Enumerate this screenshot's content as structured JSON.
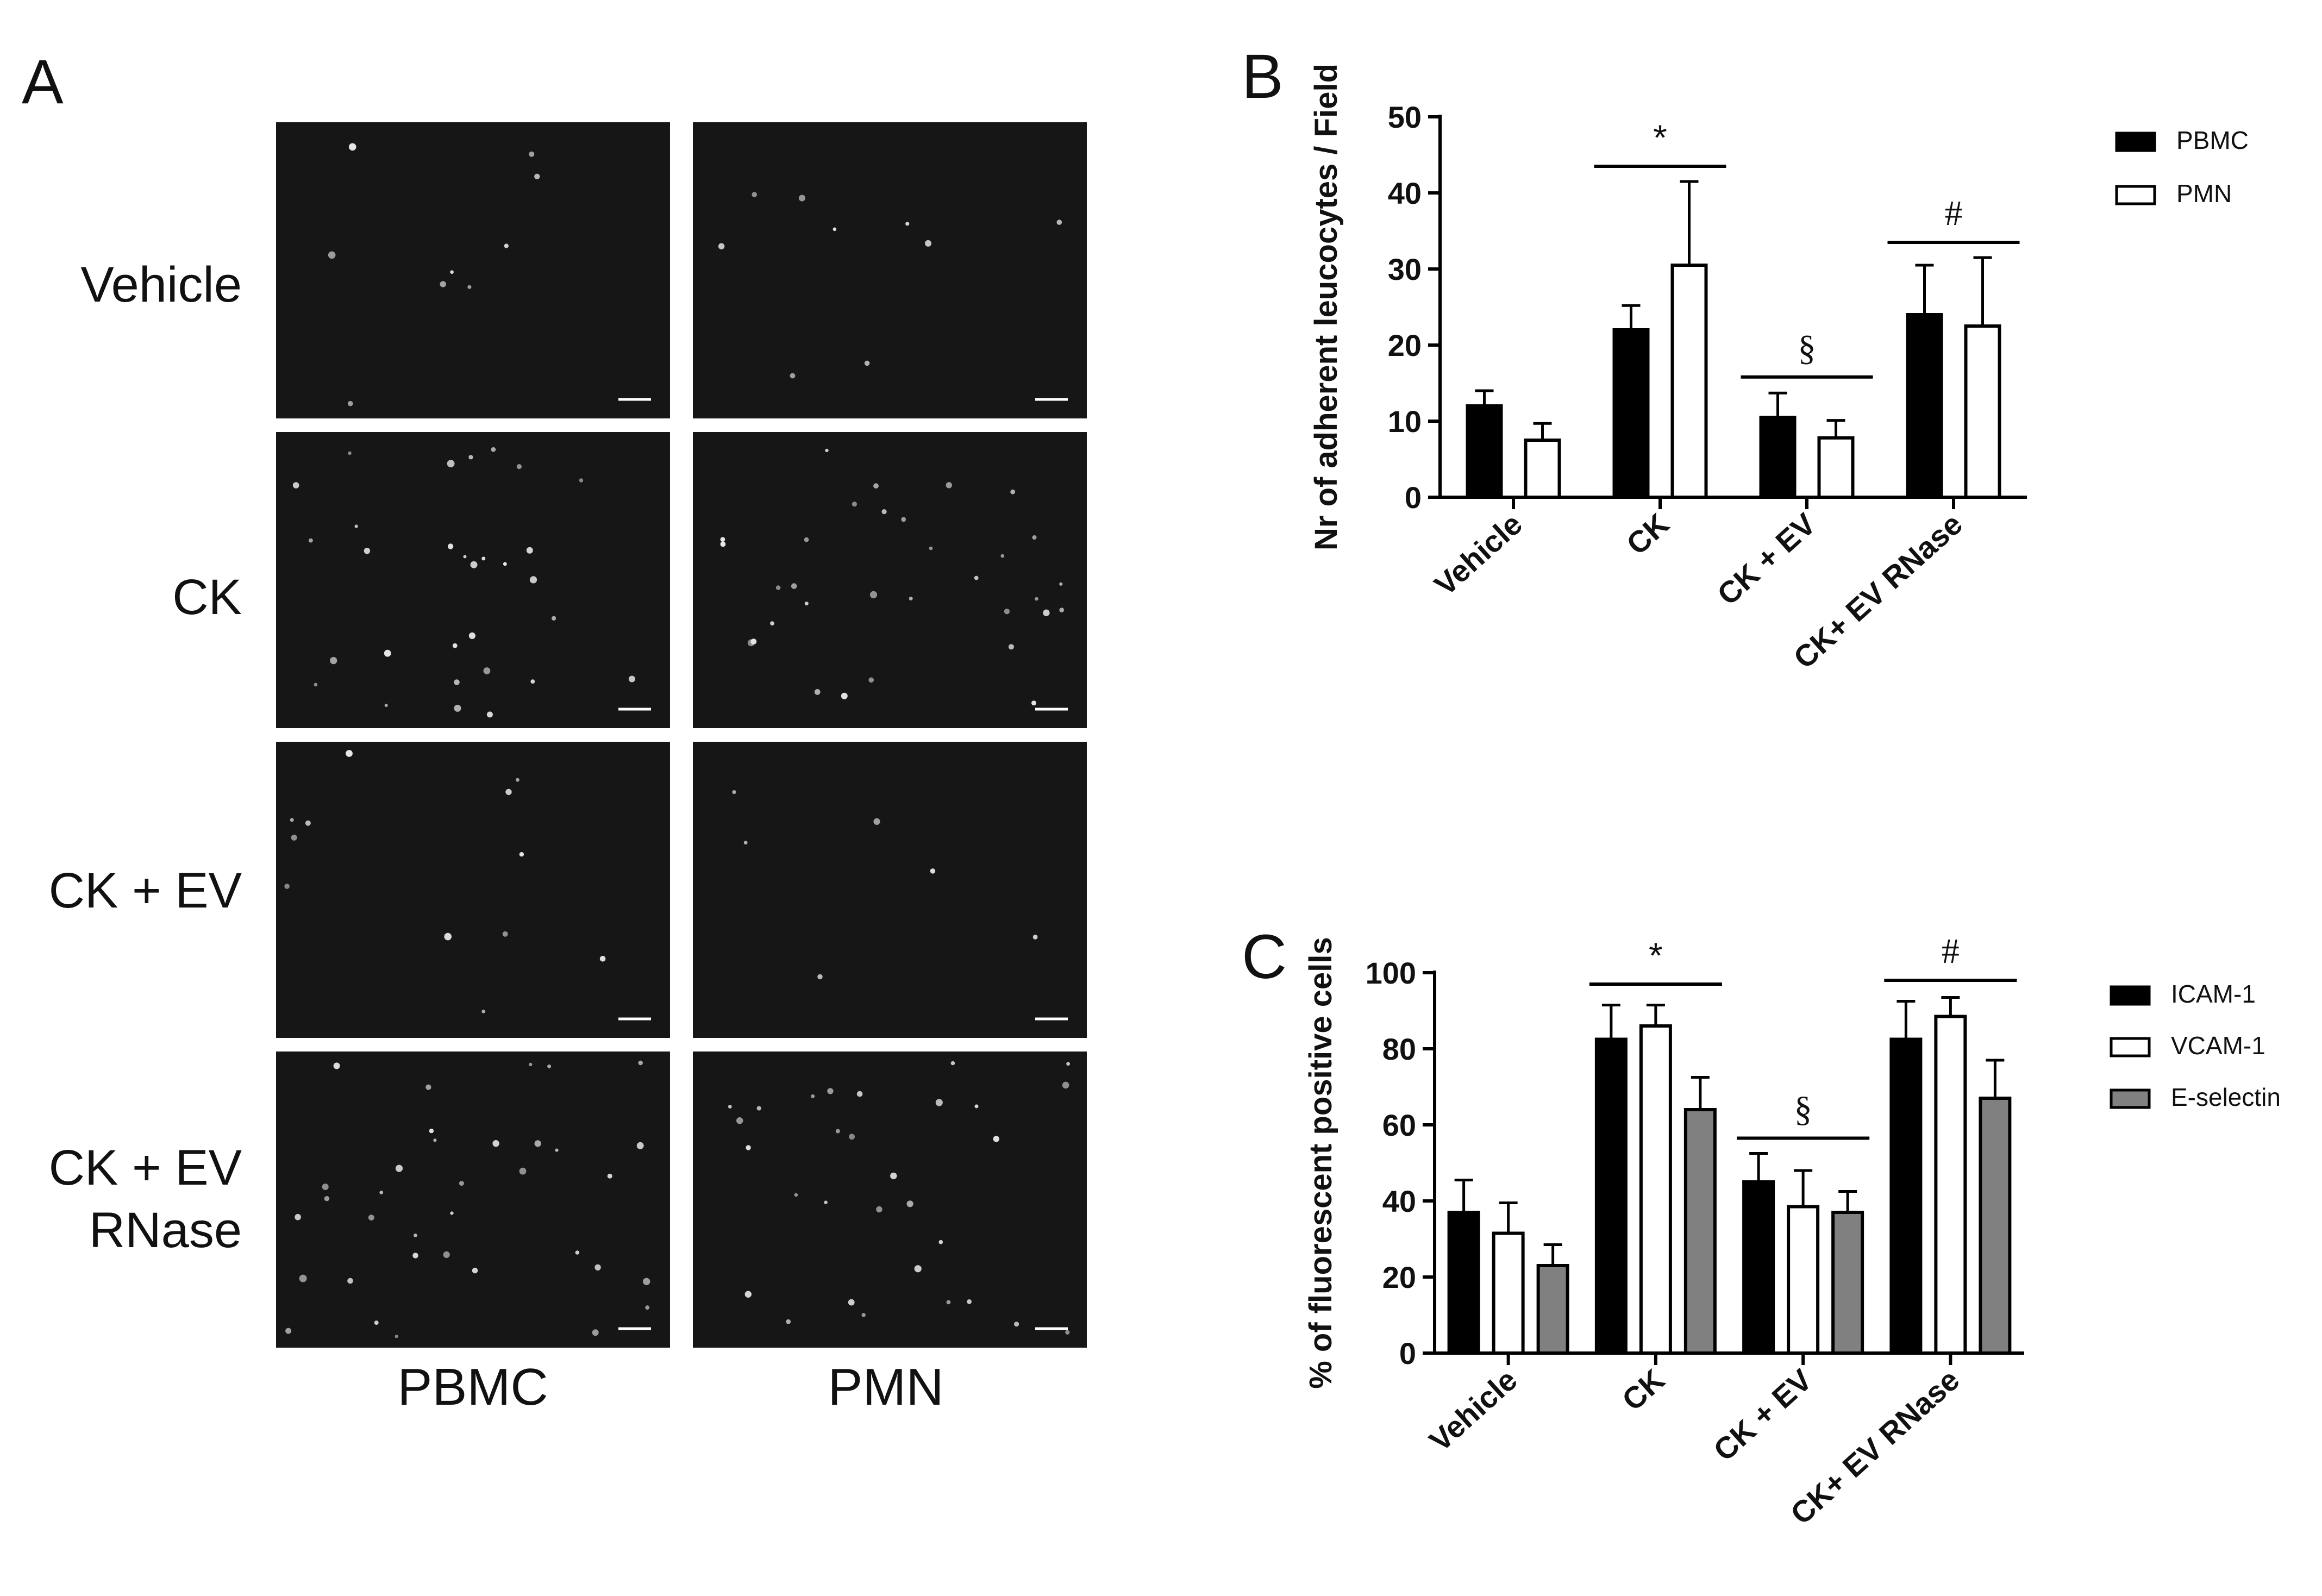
{
  "panel_a": {
    "letter": "A",
    "rows": [
      "Vehicle",
      "CK",
      "CK + EV",
      "CK + EV|RNase"
    ],
    "columns": [
      "PBMC",
      "PMN"
    ],
    "image_background": "#161616",
    "cell_color": "#e8e8e8"
  },
  "chart_data": [
    {
      "panel": "B",
      "type": "bar",
      "ylabel": "Nr of adherent leucocytes / Field",
      "ylim": [
        0,
        50
      ],
      "yticks": [
        0,
        10,
        20,
        30,
        40,
        50
      ],
      "categories": [
        "Vehicle",
        "CK",
        "CK + EV",
        "CK+ EV RNase"
      ],
      "series": [
        {
          "name": "PBMC",
          "color": "#000000",
          "values": [
            12,
            22,
            10.5,
            24
          ],
          "errors": [
            2,
            3.2,
            3.2,
            6.5
          ]
        },
        {
          "name": "PMN",
          "color": "#ffffff",
          "values": [
            7.5,
            30.5,
            7.8,
            22.5
          ],
          "errors": [
            2.2,
            11,
            2.3,
            9
          ]
        }
      ],
      "significance": [
        {
          "symbol": "*",
          "category": "CK",
          "level": 43.5
        },
        {
          "symbol": "§",
          "category": "CK + EV",
          "level": 15.8
        },
        {
          "symbol": "#",
          "category": "CK+ EV RNase",
          "level": 33.5
        }
      ],
      "legend_position": "top-right"
    },
    {
      "panel": "C",
      "type": "bar",
      "ylabel": "% of fluorescent positive cells",
      "ylim": [
        0,
        100
      ],
      "yticks": [
        0,
        20,
        40,
        60,
        80,
        100
      ],
      "categories": [
        "Vehicle",
        "CK",
        "CK + EV",
        "CK+ EV RNase"
      ],
      "series": [
        {
          "name": "ICAM-1",
          "color": "#000000",
          "values": [
            37,
            82.5,
            45,
            82.5
          ],
          "errors": [
            8.5,
            9,
            7.5,
            10
          ]
        },
        {
          "name": "VCAM-1",
          "color": "#ffffff",
          "values": [
            31.5,
            86,
            38.5,
            88.5
          ],
          "errors": [
            8,
            5.5,
            9.5,
            5
          ]
        },
        {
          "name": "E-selectin",
          "color": "#808080",
          "values": [
            23,
            64,
            37,
            67
          ],
          "errors": [
            5.5,
            8.5,
            5.5,
            10
          ]
        }
      ],
      "significance": [
        {
          "symbol": "*",
          "category": "CK",
          "level": 97
        },
        {
          "symbol": "§",
          "category": "CK + EV",
          "level": 56.5
        },
        {
          "symbol": "#",
          "category": "CK+ EV RNase",
          "level": 98
        }
      ],
      "legend_position": "top-right"
    }
  ]
}
